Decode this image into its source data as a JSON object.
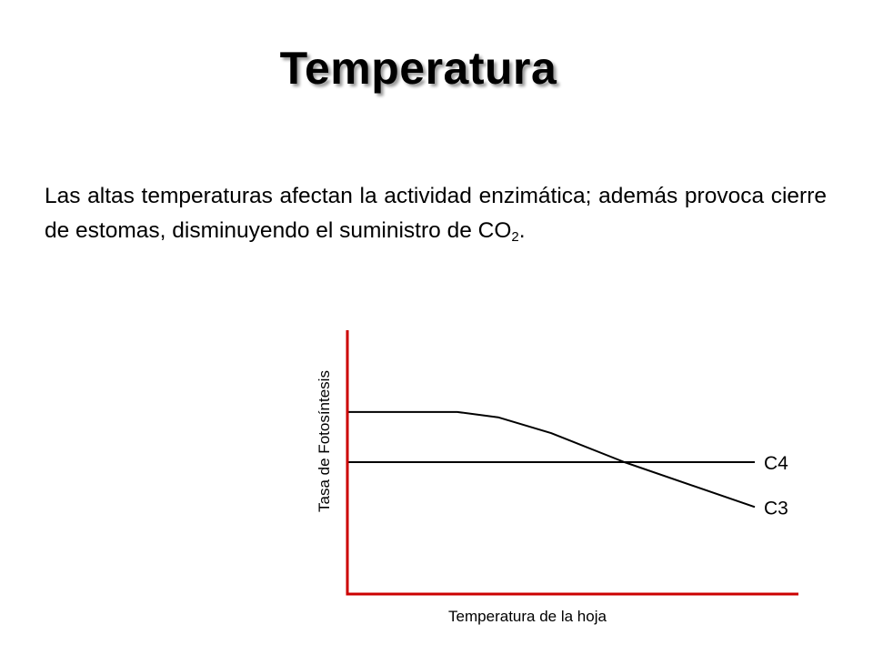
{
  "slide": {
    "title": "Temperatura",
    "paragraph": {
      "text": "Las altas temperaturas afectan la actividad enzimática; además provoca cierre de estomas, disminuyendo el suministro de CO",
      "subscript": "2",
      "suffix": "."
    }
  },
  "chart_data": {
    "type": "line",
    "title": "",
    "xlabel": "Temperatura de la hoja",
    "ylabel": "Tasa de Fotosíntesis",
    "x_ticks": [],
    "y_ticks": [],
    "xlim": [
      0,
      100
    ],
    "ylim": [
      0,
      100
    ],
    "grid": false,
    "legend": "none",
    "series": [
      {
        "name": "C3",
        "x": [
          0,
          27,
          37,
          50,
          68,
          100
        ],
        "y": [
          69,
          69,
          67,
          61,
          50,
          33
        ],
        "color": "#000000"
      },
      {
        "name": "C4",
        "x": [
          0,
          100
        ],
        "y": [
          50,
          50
        ],
        "color": "#000000"
      }
    ],
    "axis_color": "#cc0000"
  }
}
